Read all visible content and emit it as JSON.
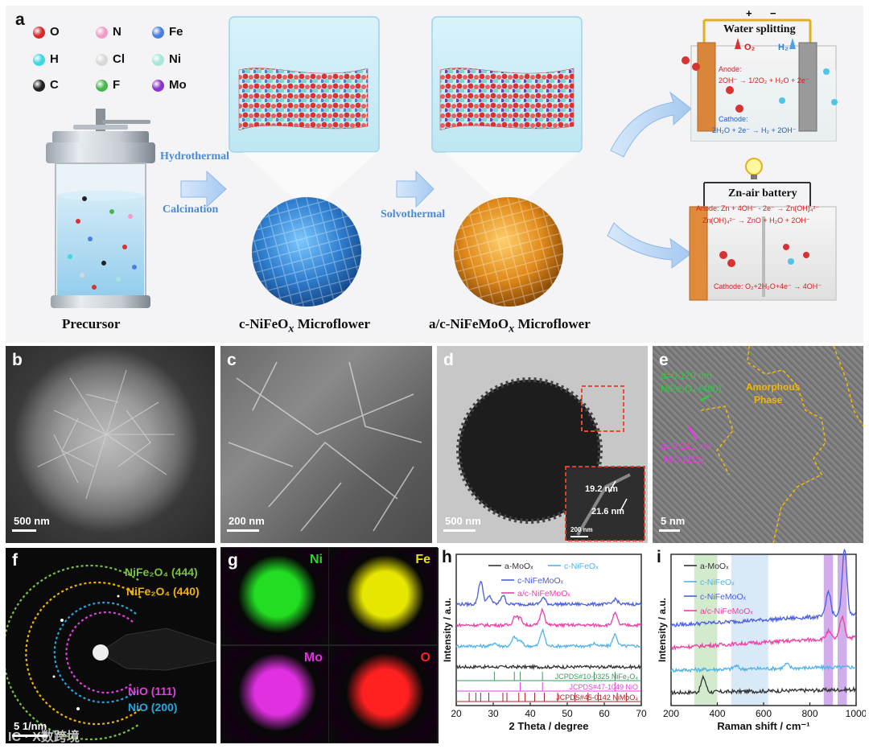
{
  "panel_a": {
    "letter": "a",
    "legend": [
      {
        "symbol": "O",
        "color": "#d42a2a"
      },
      {
        "symbol": "N",
        "color": "#f39bc8"
      },
      {
        "symbol": "Fe",
        "color": "#4a7fe0"
      },
      {
        "symbol": "H",
        "color": "#3fd6e0"
      },
      {
        "symbol": "Cl",
        "color": "#d8d8d8"
      },
      {
        "symbol": "Ni",
        "color": "#a7e6d9"
      },
      {
        "symbol": "C",
        "color": "#222222"
      },
      {
        "symbol": "F",
        "color": "#45b84a"
      },
      {
        "symbol": "Mo",
        "color": "#8a35c9"
      }
    ],
    "arrow1_top": "Hydrothermal",
    "arrow1_bottom": "Calcination",
    "arrow2": "Solvothermal",
    "precursor_label": "Precursor",
    "label_c_prefix": "c-NiFeO",
    "label_c_sub": "x",
    "label_c_suffix": " Microflower",
    "label_ac_prefix": "a/c-NiFeMoO",
    "label_ac_sub": "x",
    "label_ac_suffix": " Microflower",
    "water": {
      "title": "Water splitting",
      "plus": "+",
      "minus": "−",
      "o2": "O₂",
      "h2": "H₂",
      "anode_label": "Anode:",
      "anode_eq": "2OH⁻ → 1/2O₂ + H₂O + 2e⁻",
      "cathode_label": "Cathode:",
      "cathode_eq": "2H₂O + 2e⁻ → H₂ + 2OH⁻"
    },
    "znair": {
      "title": "Zn-air battery",
      "anode_eq1": "Anode: Zn + 4OH⁻ - 2e⁻ → Zn(OH)₄²⁻",
      "anode_eq2": "Zn(OH)₄²⁻ → ZnO + H₂O + 2OH⁻",
      "cathode_eq": "Cathode: O₂+2H₂O+4e⁻ → 4OH⁻"
    }
  },
  "panel_b": {
    "letter": "b",
    "scale": "500 nm"
  },
  "panel_c": {
    "letter": "c",
    "scale": "200 nm"
  },
  "panel_d": {
    "letter": "d",
    "scale": "500 nm",
    "inset_scale": "200 nm",
    "thickness1": "19.2 nm",
    "thickness2": "21.6 nm"
  },
  "panel_e": {
    "letter": "e",
    "d1": "d=0.170 nm",
    "plane1": "NiFe₂O₄ (400)",
    "amorphous1": "Amorphous",
    "amorphous2": "Phase",
    "d2": "d=0.241 nm",
    "plane2": "NiO (111)",
    "scale": "5 nm"
  },
  "panel_f": {
    "letter": "f",
    "rings": [
      {
        "label": "NiFe₂O₄ (444)",
        "color": "#7bc043"
      },
      {
        "label": "NiFe₂O₄ (440)",
        "color": "#f0b400"
      },
      {
        "label": "NiO (111)",
        "color": "#e040e0"
      },
      {
        "label": "NiO (200)",
        "color": "#22a8e0"
      }
    ],
    "scale": "5 1/nm"
  },
  "panel_g": {
    "letter": "g",
    "maps": [
      {
        "element": "Ni",
        "color": "#22dd22"
      },
      {
        "element": "Fe",
        "color": "#e6e600"
      },
      {
        "element": "Mo",
        "color": "#e030e0"
      },
      {
        "element": "O",
        "color": "#ff2020"
      }
    ]
  },
  "panel_h": {
    "letter": "h",
    "legend": [
      "a-MoOₓ",
      "c-NiFeOₓ",
      "c-NiFeMoOₓ",
      "a/c-NiFeMoOₓ"
    ],
    "ref_labels": [
      "JCPDS#10-0325 NiFe₂O₄",
      "JCPDS#47-1049 NiO",
      "JCPDS#45-0142 NiMoO₄"
    ]
  },
  "panel_i": {
    "letter": "i",
    "legend": [
      "a-MoOₓ",
      "c-NiFeOₓ",
      "c-NiFeMoOₓ",
      "a/c-NiFeMoOₓ"
    ]
  },
  "watermark": "IC · X数跨境",
  "chart_data": [
    {
      "type": "line",
      "panel": "h",
      "xlabel": "2 Theta / degree",
      "ylabel": "Intensity / a.u.",
      "xlim": [
        20,
        70
      ],
      "xticks": [
        20,
        30,
        40,
        50,
        60,
        70
      ],
      "series": [
        {
          "name": "a-MoOₓ",
          "color": "#333333",
          "offset": 0.0,
          "peaks": [
            [
              26.0,
              0.02
            ]
          ]
        },
        {
          "name": "c-NiFeOₓ",
          "color": "#4fb3e8",
          "offset": 1.0,
          "peaks": [
            [
              30.3,
              0.12
            ],
            [
              35.7,
              0.35
            ],
            [
              37.3,
              0.2
            ],
            [
              43.3,
              0.6
            ],
            [
              57.3,
              0.1
            ],
            [
              62.9,
              0.45
            ]
          ]
        },
        {
          "name": "c-NiFeMoOₓ",
          "color": "#4a5fe0",
          "offset": 3.0,
          "peaks": [
            [
              26.6,
              0.9
            ],
            [
              29.0,
              0.3
            ],
            [
              32.6,
              0.35
            ],
            [
              43.5,
              0.25
            ],
            [
              63.0,
              0.2
            ]
          ]
        },
        {
          "name": "a/c-NiFeMoOₓ",
          "color": "#ee3fa8",
          "offset": 2.0,
          "peaks": [
            [
              35.9,
              0.35
            ],
            [
              37.3,
              0.25
            ],
            [
              43.3,
              0.6
            ],
            [
              62.9,
              0.45
            ]
          ]
        }
      ],
      "references": [
        {
          "name": "JCPDS#10-0325 NiFe₂O₄",
          "color": "#3a9a5a",
          "lines": [
            30.3,
            35.7,
            37.3,
            43.3,
            57.3,
            62.9
          ]
        },
        {
          "name": "JCPDS#47-1049 NiO",
          "color": "#e040e0",
          "lines": [
            37.3,
            43.3,
            62.9
          ]
        },
        {
          "name": "JCPDS#45-0142 NiMoO₄",
          "color": "#b02020",
          "lines": [
            23.5,
            25.3,
            26.6,
            28.8,
            32.6,
            33.7,
            36.9,
            38.6,
            41.2,
            43.8,
            47.4,
            52.1,
            55.6,
            58.4,
            63.5,
            66.0
          ]
        }
      ]
    },
    {
      "type": "line",
      "panel": "i",
      "xlabel": "Raman shift / cm⁻¹",
      "ylabel": "Intensity / a.u.",
      "xlim": [
        200,
        1000
      ],
      "xticks": [
        200,
        400,
        600,
        800,
        1000
      ],
      "highlight_bands": [
        {
          "range": [
            300,
            400
          ],
          "color": "#c8e6c0"
        },
        {
          "range": [
            460,
            620
          ],
          "color": "#cfe4f5"
        },
        {
          "range": [
            860,
            900
          ],
          "color": "#c59ae6"
        },
        {
          "range": [
            920,
            960
          ],
          "color": "#c59ae6"
        }
      ],
      "series": [
        {
          "name": "a-MoOₓ",
          "color": "#333333",
          "offset": 0.0,
          "peaks": [
            [
              340,
              0.7
            ]
          ]
        },
        {
          "name": "c-NiFeOₓ",
          "color": "#4fb3e8",
          "offset": 1.0,
          "peaks": [
            [
              480,
              0.15
            ],
            [
              700,
              0.2
            ]
          ]
        },
        {
          "name": "c-NiFeMoOₓ",
          "color": "#4a5fe0",
          "offset": 3.0,
          "peaks": [
            [
              880,
              1.2
            ],
            [
              950,
              3.2
            ]
          ]
        },
        {
          "name": "a/c-NiFeMoOₓ",
          "color": "#ee3fa8",
          "offset": 2.0,
          "peaks": [
            [
              880,
              0.35
            ],
            [
              940,
              1.0
            ]
          ]
        }
      ]
    }
  ]
}
